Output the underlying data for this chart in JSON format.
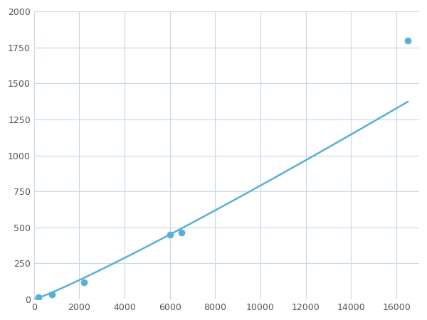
{
  "x_data": [
    200,
    800,
    2200,
    6000,
    6500,
    16500
  ],
  "y_data": [
    15,
    35,
    120,
    450,
    465,
    1800
  ],
  "line_color": "#5bafd6",
  "marker_color": "#5bafd6",
  "marker_size": 7,
  "line_width": 1.8,
  "xlim": [
    0,
    17000
  ],
  "ylim": [
    0,
    2000
  ],
  "xticks": [
    0,
    2000,
    4000,
    6000,
    8000,
    10000,
    12000,
    14000,
    16000
  ],
  "yticks": [
    0,
    250,
    500,
    750,
    1000,
    1250,
    1500,
    1750,
    2000
  ],
  "grid_color": "#c8d8e8",
  "bg_color": "#ffffff",
  "figure_bg_color": "#ffffff"
}
